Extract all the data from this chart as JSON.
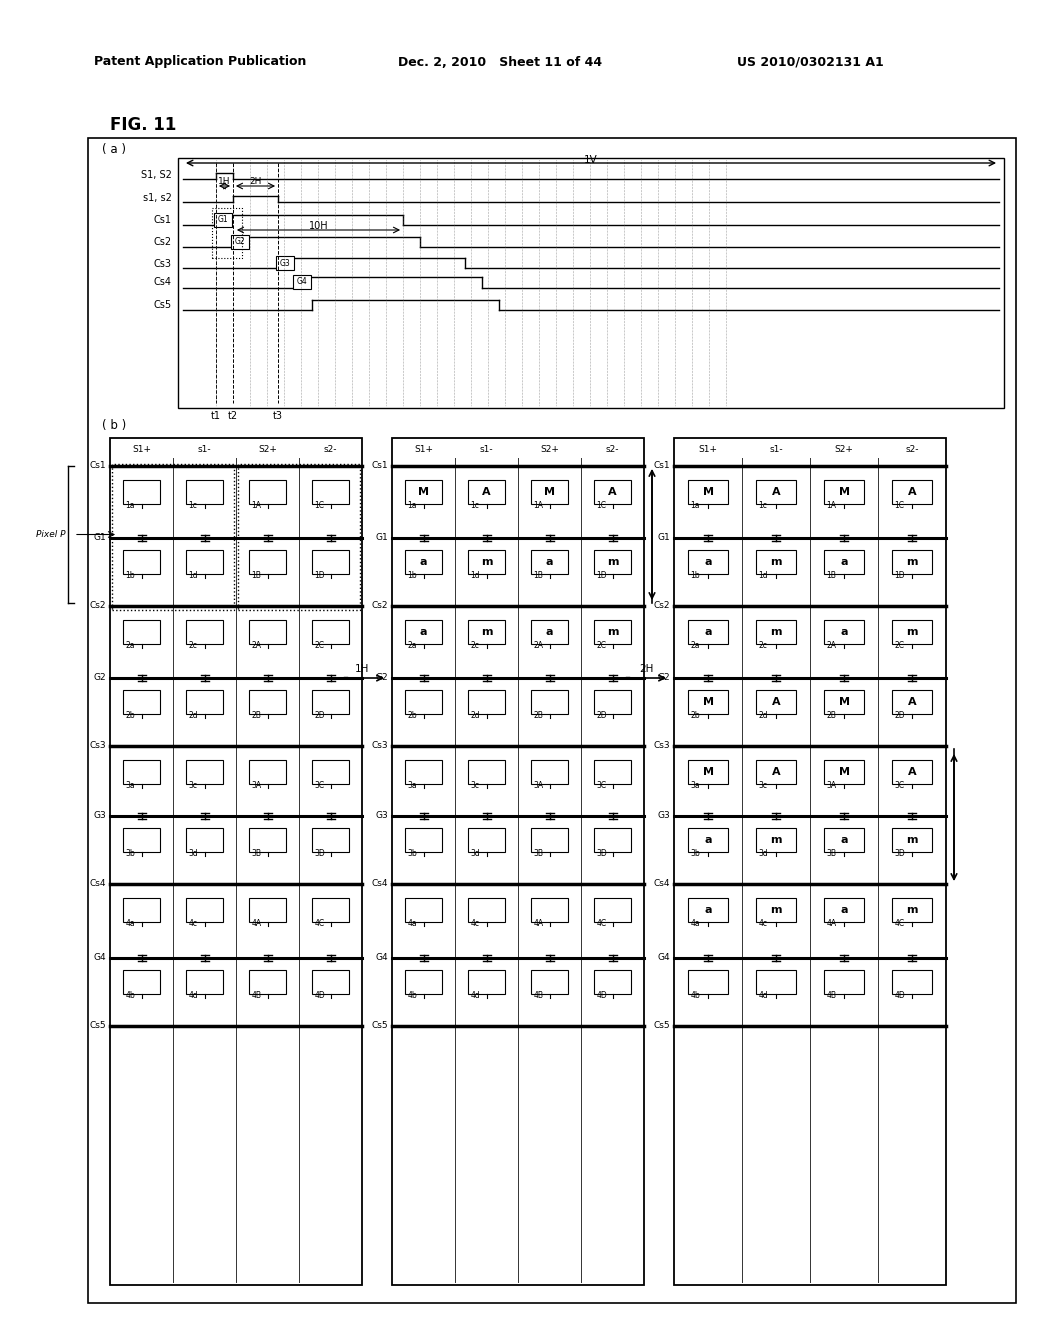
{
  "header_left": "Patent Application Publication",
  "header_mid": "Dec. 2, 2010   Sheet 11 of 44",
  "header_right": "US 2010/0302131 A1",
  "fig_title": "FIG. 11",
  "bg_color": "#ffffff",
  "col_headers": [
    "S1+",
    "s1-",
    "S2+",
    "s2-"
  ],
  "mid_fills_row1a": {
    "1a": "M",
    "1c": "A",
    "1A": "M",
    "1C": "A"
  },
  "mid_fills_row1b": {
    "1b": "a",
    "1d": "m",
    "1B": "a",
    "1D": "m"
  },
  "mid_fills_row2a": {
    "2a": "a",
    "2c": "m",
    "2A": "a",
    "2C": "m"
  },
  "right_fills": {
    "1a": "M",
    "1c": "A",
    "1A": "M",
    "1C": "A",
    "1b": "a",
    "1d": "m",
    "1B": "a",
    "1D": "m",
    "2a": "a",
    "2c": "m",
    "2A": "a",
    "2C": "m",
    "2b": "M",
    "2d": "A",
    "2B": "M",
    "2D": "A",
    "3a": "M",
    "3c": "A",
    "3A": "M",
    "3C": "A",
    "3b": "a",
    "3d": "m",
    "3B": "a",
    "3D": "m",
    "4a": "a",
    "4c": "m",
    "4A": "a",
    "4C": "m"
  }
}
